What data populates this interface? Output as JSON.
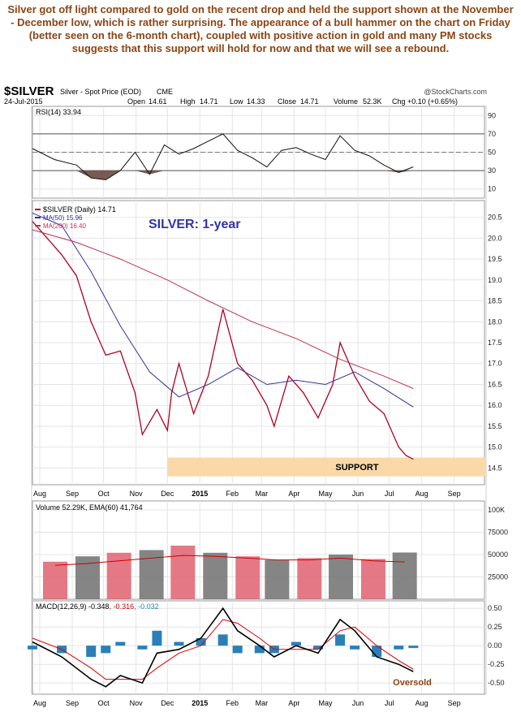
{
  "commentary": "Silver got off light compared to gold on the recent drop and held the support shown at the November - December low, which is rather surprising. The appearance of a bull hammer on the chart on Friday (better seen on the 6-month chart), coupled with positive action in gold and many PM stocks suggests that this support will hold for now and that we will see a rebound.",
  "header": {
    "symbol": "$SILVER",
    "desc": "Silver - Spot Price (EOD)",
    "exchange": "CME",
    "brand": "@StockCharts.com",
    "date": "24-Jul-2015",
    "open_label": "Open",
    "open": "14.61",
    "high_label": "High",
    "high": "14.71",
    "low_label": "Low",
    "low": "14.33",
    "close_label": "Close",
    "close": "14.71",
    "volume_label": "Volume",
    "volume": "52.3K",
    "chg_label": "Chg",
    "chg": "+0.10 (+0.65%)"
  },
  "colors": {
    "price": "#b00020",
    "ma50": "#3030a0",
    "ma200": "#c03050",
    "rsi_fill": "#7a5a52",
    "vol_up": "#e06070",
    "vol_down": "#707070",
    "macd_hist": "#2a7fb8",
    "support": "#f9d9a8",
    "title_blue": "#3333aa",
    "annotation": "#8B4513"
  },
  "chart_data": [
    {
      "type": "line",
      "name": "rsi-panel",
      "label": "RSI(14) 33.94",
      "yticks": [
        90,
        70,
        50,
        30,
        10
      ],
      "ylim": [
        0,
        100
      ],
      "x": [
        "2014-07-25",
        "2014-08-15",
        "2014-09-05",
        "2014-09-19",
        "2014-10-03",
        "2014-10-17",
        "2014-10-31",
        "2014-11-14",
        "2014-11-28",
        "2014-12-12",
        "2014-12-26",
        "2015-01-09",
        "2015-01-23",
        "2015-02-06",
        "2015-02-20",
        "2015-03-06",
        "2015-03-20",
        "2015-04-03",
        "2015-04-17",
        "2015-05-01",
        "2015-05-15",
        "2015-05-29",
        "2015-06-12",
        "2015-06-26",
        "2015-07-10",
        "2015-07-24"
      ],
      "y": [
        54,
        42,
        36,
        22,
        20,
        30,
        50,
        26,
        58,
        48,
        54,
        62,
        70,
        52,
        44,
        34,
        52,
        55,
        48,
        42,
        68,
        52,
        46,
        36,
        28,
        34
      ]
    },
    {
      "type": "line",
      "name": "price-panel",
      "title": "SILVER: 1-year",
      "legend": [
        "$SILVER (Daily) 14.71",
        "MA(50) 15.96",
        "MA(200) 16.40"
      ],
      "annotation": "SUPPORT",
      "support_band": [
        14.3,
        14.75
      ],
      "ylim": [
        14.1,
        20.9
      ],
      "yticks": [
        20.5,
        20.0,
        19.5,
        19.0,
        18.5,
        18.0,
        17.5,
        17.0,
        16.5,
        16.0,
        15.5,
        15.0,
        14.5
      ],
      "xticks": [
        "Aug",
        "Sep",
        "Oct",
        "Nov",
        "Dec",
        "2015",
        "Feb",
        "Mar",
        "Apr",
        "May",
        "Jun",
        "Jul",
        "Aug",
        "Sep"
      ],
      "series": [
        {
          "name": "$SILVER (Daily) 14.71",
          "x": [
            "2014-07-25",
            "2014-08-08",
            "2014-08-22",
            "2014-09-05",
            "2014-09-19",
            "2014-10-03",
            "2014-10-17",
            "2014-10-31",
            "2014-11-07",
            "2014-11-21",
            "2014-12-01",
            "2014-12-05",
            "2014-12-12",
            "2014-12-26",
            "2015-01-09",
            "2015-01-23",
            "2015-02-06",
            "2015-02-20",
            "2015-03-06",
            "2015-03-13",
            "2015-03-27",
            "2015-04-10",
            "2015-04-24",
            "2015-05-08",
            "2015-05-15",
            "2015-05-29",
            "2015-06-12",
            "2015-06-26",
            "2015-07-10",
            "2015-07-17",
            "2015-07-24"
          ],
          "y": [
            20.4,
            20.0,
            19.6,
            19.1,
            18.0,
            17.2,
            17.3,
            16.3,
            15.3,
            15.9,
            15.4,
            16.3,
            17.0,
            15.8,
            16.7,
            18.3,
            17.0,
            16.6,
            16.0,
            15.5,
            16.7,
            16.3,
            15.7,
            16.5,
            17.5,
            16.7,
            16.1,
            15.8,
            15.0,
            14.8,
            14.71
          ]
        },
        {
          "name": "MA(50) 15.96",
          "x": [
            "2014-07-25",
            "2014-08-22",
            "2014-09-19",
            "2014-10-17",
            "2014-11-14",
            "2014-12-12",
            "2015-01-09",
            "2015-02-06",
            "2015-03-06",
            "2015-04-03",
            "2015-05-01",
            "2015-05-29",
            "2015-06-26",
            "2015-07-24"
          ],
          "y": [
            20.6,
            20.3,
            19.2,
            17.9,
            16.8,
            16.2,
            16.5,
            16.9,
            16.5,
            16.6,
            16.5,
            16.8,
            16.4,
            15.96
          ]
        },
        {
          "name": "MA(200) 16.40",
          "x": [
            "2014-07-25",
            "2014-09-05",
            "2014-10-17",
            "2014-12-01",
            "2015-01-09",
            "2015-02-20",
            "2015-04-03",
            "2015-05-15",
            "2015-06-26",
            "2015-07-24"
          ],
          "y": [
            20.2,
            19.9,
            19.5,
            19.0,
            18.5,
            18.0,
            17.6,
            17.1,
            16.7,
            16.4
          ]
        }
      ]
    },
    {
      "type": "bar",
      "name": "volume-panel",
      "label": "Volume 52.29K, EMA(60) 41,764",
      "yticks": [
        "100K",
        "75000",
        "50000",
        "25000"
      ],
      "ylim": [
        0,
        110000
      ],
      "x": [
        "2014-08",
        "2014-09",
        "2014-10",
        "2014-11",
        "2014-12",
        "2015-01",
        "2015-02",
        "2015-03",
        "2015-04",
        "2015-05",
        "2015-06",
        "2015-07"
      ],
      "values": [
        42000,
        48000,
        52000,
        55000,
        60000,
        52000,
        48000,
        44000,
        46000,
        50000,
        45000,
        52290
      ],
      "ema": [
        38000,
        40000,
        43000,
        46000,
        49000,
        48000,
        46000,
        44000,
        44000,
        46000,
        43000,
        41764
      ]
    },
    {
      "type": "line",
      "name": "macd-panel",
      "label_parts": [
        "MACD(12,26,9)",
        "-0.348",
        "-0.316",
        "-0.032"
      ],
      "annotation": "Oversold",
      "yticks": [
        0.5,
        0.25,
        0.0,
        -0.25,
        -0.5
      ],
      "ylim": [
        -0.65,
        0.6
      ],
      "xticks": [
        "Aug",
        "Sep",
        "Oct",
        "Nov",
        "Dec",
        "2015",
        "Feb",
        "Mar",
        "Apr",
        "May",
        "Jun",
        "Jul",
        "Aug",
        "Sep"
      ],
      "x": [
        "2014-07-25",
        "2014-08-22",
        "2014-09-19",
        "2014-10-03",
        "2014-10-17",
        "2014-11-07",
        "2014-11-21",
        "2014-12-12",
        "2015-01-02",
        "2015-01-23",
        "2015-02-06",
        "2015-02-27",
        "2015-03-13",
        "2015-04-03",
        "2015-04-24",
        "2015-05-15",
        "2015-05-29",
        "2015-06-19",
        "2015-07-10",
        "2015-07-24"
      ],
      "macd": [
        0.05,
        -0.15,
        -0.45,
        -0.55,
        -0.4,
        -0.5,
        -0.1,
        -0.05,
        0.1,
        0.5,
        0.2,
        0.0,
        -0.15,
        0.0,
        -0.1,
        0.35,
        0.2,
        -0.15,
        -0.25,
        -0.348
      ],
      "signal": [
        0.1,
        -0.05,
        -0.3,
        -0.45,
        -0.45,
        -0.45,
        -0.3,
        -0.1,
        0.0,
        0.35,
        0.3,
        0.1,
        -0.05,
        -0.05,
        -0.05,
        0.2,
        0.25,
        0.0,
        -0.2,
        -0.316
      ],
      "histogram": [
        -0.05,
        -0.1,
        -0.15,
        -0.1,
        0.05,
        -0.05,
        0.2,
        0.05,
        0.1,
        0.15,
        -0.1,
        -0.1,
        -0.1,
        0.05,
        -0.05,
        0.15,
        -0.05,
        -0.15,
        -0.05,
        -0.032
      ]
    }
  ]
}
